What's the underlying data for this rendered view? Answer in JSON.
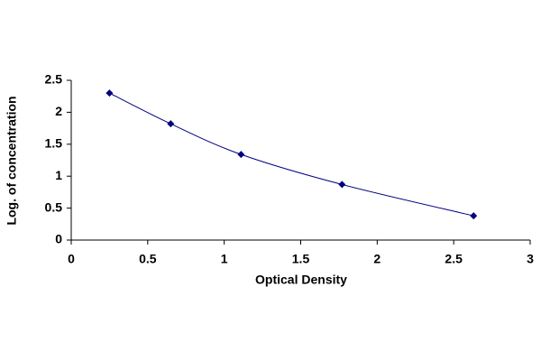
{
  "chart_data": {
    "type": "line",
    "x_label": "Optical Density",
    "y_label": "Log. of concentration",
    "x": [
      0.25,
      0.65,
      1.11,
      1.77,
      2.63
    ],
    "series": [
      {
        "color": "#000080",
        "values": [
          2.3,
          1.82,
          1.34,
          0.87,
          0.38
        ]
      }
    ],
    "xlim": [
      0,
      3
    ],
    "xticks": [
      0,
      0.5,
      1,
      1.5,
      2,
      2.5,
      3
    ],
    "ylim": [
      0,
      2.5
    ],
    "yticks": [
      0,
      0.5,
      1,
      1.5,
      2,
      2.5
    ],
    "grid": false,
    "smooth": true
  }
}
